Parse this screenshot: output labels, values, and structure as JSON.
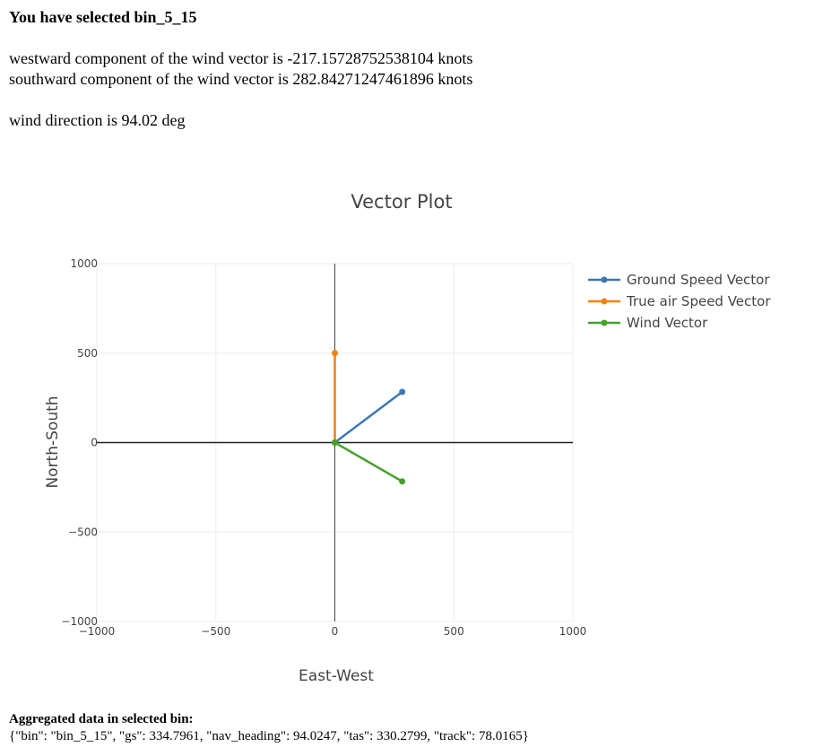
{
  "header": {
    "selection_text": "You have selected bin_5_15"
  },
  "wind_info": {
    "westward_line": "westward component of the wind vector is -217.15728752538104 knots",
    "southward_line": "southward component of the wind vector is 282.84271247461896 knots",
    "direction_line": "wind direction is 94.02 deg"
  },
  "aggregated": {
    "title": "Aggregated data in selected bin:",
    "json_text": "{\"bin\": \"bin_5_15\", \"gs\": 334.7961, \"nav_heading\": 94.0247, \"tas\": 330.2799, \"track\": 78.0165}"
  },
  "chart_data": {
    "type": "line",
    "title": "Vector Plot",
    "xlabel": "East-West",
    "ylabel": "North-South",
    "xlim": [
      -1000,
      1000
    ],
    "ylim": [
      -1000,
      1000
    ],
    "xticks": [
      -1000,
      -500,
      0,
      500,
      1000
    ],
    "yticks": [
      1000,
      500,
      0,
      -500,
      -1000
    ],
    "xtick_labels": [
      "−1000",
      "−500",
      "0",
      "500",
      "1000"
    ],
    "ytick_labels": [
      "1000",
      "500",
      "0",
      "−500",
      "−1000"
    ],
    "grid": true,
    "legend_position": "top-right",
    "series": [
      {
        "name": "Ground Speed Vector",
        "color": "#3c78b4",
        "x": [
          0,
          283
        ],
        "y": [
          0,
          283
        ]
      },
      {
        "name": "True air Speed Vector",
        "color": "#f0820f",
        "x": [
          0,
          0
        ],
        "y": [
          0,
          500
        ]
      },
      {
        "name": "Wind Vector",
        "color": "#46a02d",
        "x": [
          0,
          283
        ],
        "y": [
          0,
          -217
        ]
      }
    ]
  }
}
